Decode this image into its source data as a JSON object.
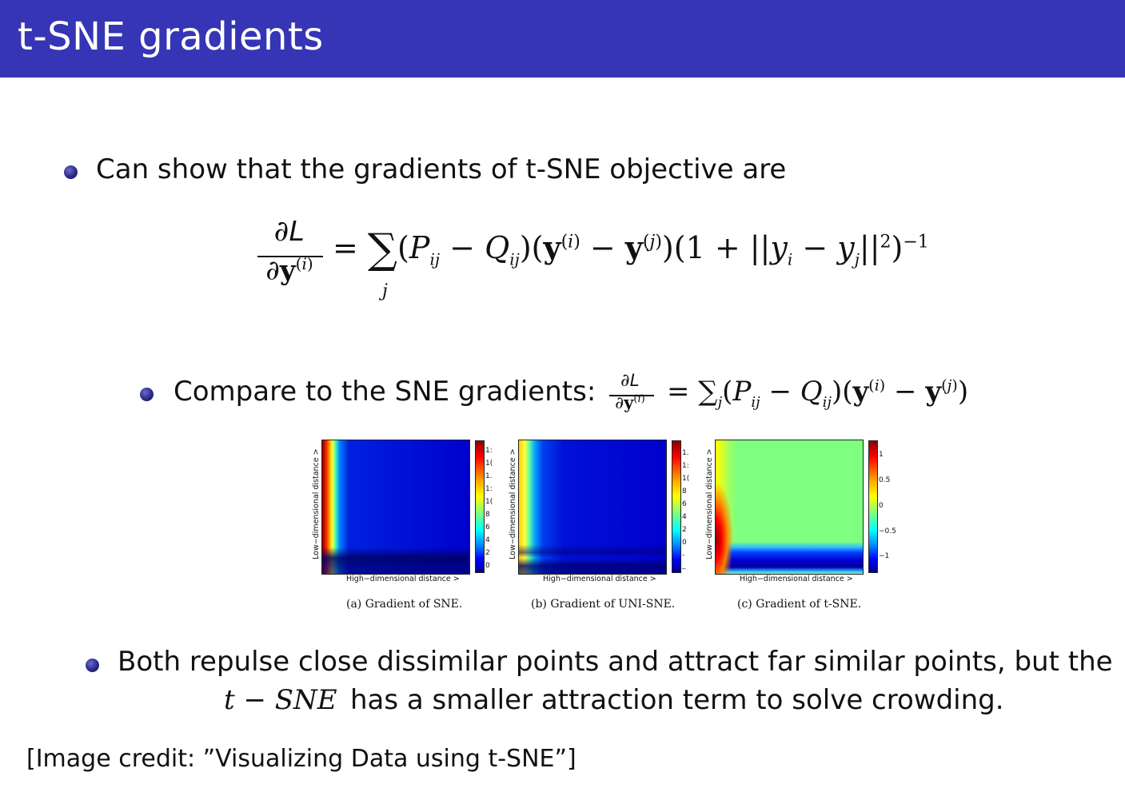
{
  "header": {
    "title": "t-SNE gradients",
    "bg_color": "#3535b5"
  },
  "bullets": {
    "b1": "Can show that the gradients of t-SNE objective are",
    "b2_prefix": "Compare to the SNE gradients:",
    "b3_line1": "Both repulse close dissimilar points and attract far similar points, but the",
    "b3_math": "t − SNE",
    "b3_line2_rest": "has a smaller attraction term to solve crowding."
  },
  "equations": {
    "tsne_num": "∂L",
    "tsne_den": "∂y(i)",
    "tsne_rhs": "= ∑j (Pij − Qij)(y(i) − y(j))(1 + ||yi − yj||²)⁻¹",
    "sne_rhs": "= ∑j(Pij − Qij)(y(i) − y(j))"
  },
  "figures": [
    {
      "caption": "(a) Gradient of SNE.",
      "xlabel": "High−dimensional distance >",
      "ylabel": "Low−dimensional distance >",
      "colorbar_ticks": [
        "1:",
        "1(",
        "1.",
        "1:",
        "1(",
        "8",
        "6",
        "4",
        "2",
        "0"
      ]
    },
    {
      "caption": "(b) Gradient of UNI-SNE.",
      "xlabel": "High−dimensional distance >",
      "ylabel": "Low−dimensional distance >",
      "colorbar_ticks": [
        "1.",
        "1:",
        "1(",
        "8",
        "6",
        "4",
        "2",
        "0",
        "-",
        "_"
      ]
    },
    {
      "caption": "(c) Gradient of t-SNE.",
      "xlabel": "High−dimensional distance >",
      "ylabel": "Low−dimensional distance >",
      "colorbar_ticks": [
        "1",
        "0.5",
        "0",
        "−0.5",
        "−1"
      ]
    }
  ],
  "credit": "[Image credit: ”Visualizing Data using t-SNE”]"
}
